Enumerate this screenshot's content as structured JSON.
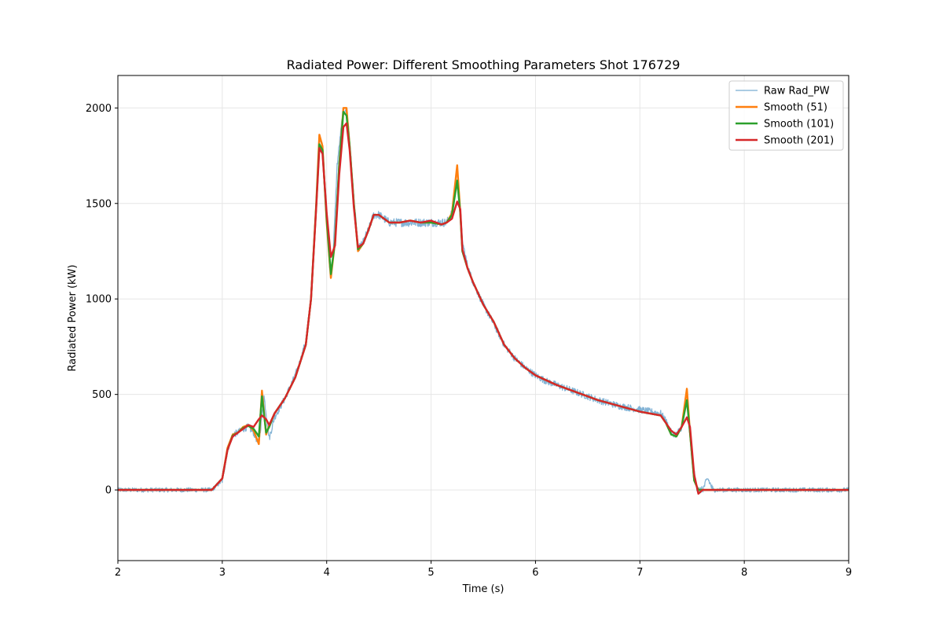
{
  "chart_data": {
    "type": "line",
    "title": "Radiated Power: Different Smoothing Parameters Shot 176729",
    "xlabel": "Time (s)",
    "ylabel": "Radiated Power (kW)",
    "xlim": [
      2,
      9
    ],
    "ylim": [
      -370,
      2170
    ],
    "xticks": [
      2,
      3,
      4,
      5,
      6,
      7,
      8,
      9
    ],
    "yticks": [
      0,
      500,
      1000,
      1500,
      2000
    ],
    "xtick_labels": [
      "2",
      "3",
      "4",
      "5",
      "6",
      "7",
      "8",
      "9"
    ],
    "ytick_labels": [
      "0",
      "500",
      "1000",
      "1500",
      "2000"
    ],
    "grid": true,
    "legend": "top-right",
    "series": [
      {
        "name": "Raw Rad_PW",
        "color": "#1f77b4",
        "style": "raw",
        "x": [
          2.0,
          2.1,
          2.2,
          2.3,
          2.4,
          2.5,
          2.6,
          2.7,
          2.8,
          2.9,
          3.0,
          3.05,
          3.1,
          3.15,
          3.2,
          3.25,
          3.3,
          3.35,
          3.4,
          3.45,
          3.5,
          3.55,
          3.6,
          3.65,
          3.7,
          3.75,
          3.8,
          3.85,
          3.9,
          3.93,
          3.96,
          4.0,
          4.03,
          4.06,
          4.1,
          4.15,
          4.18,
          4.21,
          4.25,
          4.3,
          4.35,
          4.4,
          4.45,
          4.5,
          4.6,
          4.7,
          4.8,
          4.9,
          5.0,
          5.1,
          5.15,
          5.2,
          5.25,
          5.3,
          5.35,
          5.4,
          5.5,
          5.6,
          5.7,
          5.8,
          5.9,
          6.0,
          6.1,
          6.2,
          6.3,
          6.4,
          6.5,
          6.6,
          6.7,
          6.8,
          6.9,
          7.0,
          7.1,
          7.2,
          7.25,
          7.3,
          7.35,
          7.4,
          7.45,
          7.5,
          7.55,
          7.6,
          7.65,
          7.7,
          7.8,
          7.9,
          8.0,
          8.2,
          8.4,
          8.6,
          8.8,
          9.0
        ],
        "y": [
          0,
          0,
          0,
          0,
          0,
          0,
          0,
          0,
          0,
          0,
          50,
          210,
          290,
          300,
          320,
          330,
          300,
          240,
          490,
          270,
          380,
          430,
          480,
          540,
          600,
          680,
          780,
          1000,
          1500,
          1850,
          1820,
          1400,
          1150,
          1200,
          1700,
          1950,
          2000,
          1900,
          1600,
          1260,
          1300,
          1360,
          1440,
          1440,
          1400,
          1400,
          1400,
          1400,
          1400,
          1400,
          1400,
          1450,
          1680,
          1300,
          1170,
          1090,
          970,
          870,
          760,
          690,
          640,
          600,
          570,
          550,
          530,
          510,
          490,
          470,
          455,
          440,
          430,
          420,
          410,
          400,
          360,
          300,
          290,
          330,
          530,
          150,
          0,
          0,
          60,
          0,
          0,
          0,
          0,
          0,
          0,
          0,
          0,
          0
        ]
      },
      {
        "name": "Smooth (51)",
        "color": "#ff7f0e",
        "style": "smooth",
        "x": [
          2.0,
          2.9,
          3.0,
          3.05,
          3.1,
          3.15,
          3.2,
          3.25,
          3.3,
          3.35,
          3.38,
          3.42,
          3.45,
          3.5,
          3.6,
          3.7,
          3.8,
          3.85,
          3.9,
          3.93,
          3.96,
          4.0,
          4.04,
          4.08,
          4.12,
          4.16,
          4.19,
          4.22,
          4.26,
          4.3,
          4.35,
          4.4,
          4.45,
          4.5,
          4.6,
          4.7,
          4.8,
          4.9,
          5.0,
          5.1,
          5.15,
          5.2,
          5.25,
          5.28,
          5.3,
          5.35,
          5.4,
          5.5,
          5.6,
          5.7,
          5.8,
          5.9,
          6.0,
          6.2,
          6.4,
          6.6,
          6.8,
          7.0,
          7.2,
          7.25,
          7.3,
          7.35,
          7.4,
          7.45,
          7.48,
          7.52,
          7.56,
          7.6,
          7.7,
          8.0,
          9.0
        ],
        "y": [
          0,
          0,
          60,
          220,
          290,
          300,
          330,
          340,
          310,
          240,
          520,
          290,
          340,
          400,
          480,
          590,
          760,
          1000,
          1500,
          1860,
          1800,
          1400,
          1110,
          1300,
          1700,
          2000,
          2000,
          1800,
          1500,
          1250,
          1290,
          1360,
          1440,
          1440,
          1400,
          1400,
          1410,
          1400,
          1400,
          1390,
          1400,
          1450,
          1700,
          1450,
          1250,
          1160,
          1090,
          970,
          880,
          760,
          690,
          640,
          600,
          550,
          510,
          470,
          440,
          410,
          390,
          350,
          290,
          280,
          330,
          530,
          300,
          50,
          0,
          0,
          0,
          0,
          0
        ]
      },
      {
        "name": "Smooth (101)",
        "color": "#2ca02c",
        "style": "smooth",
        "x": [
          2.0,
          2.9,
          3.0,
          3.05,
          3.1,
          3.15,
          3.2,
          3.25,
          3.3,
          3.35,
          3.38,
          3.42,
          3.45,
          3.5,
          3.6,
          3.7,
          3.8,
          3.85,
          3.9,
          3.93,
          3.96,
          4.0,
          4.04,
          4.08,
          4.12,
          4.16,
          4.19,
          4.22,
          4.26,
          4.3,
          4.35,
          4.4,
          4.45,
          4.5,
          4.6,
          4.7,
          4.8,
          4.9,
          5.0,
          5.1,
          5.15,
          5.2,
          5.25,
          5.28,
          5.3,
          5.35,
          5.4,
          5.5,
          5.6,
          5.7,
          5.8,
          5.9,
          6.0,
          6.2,
          6.4,
          6.6,
          6.8,
          7.0,
          7.2,
          7.25,
          7.3,
          7.35,
          7.4,
          7.45,
          7.48,
          7.52,
          7.56,
          7.6,
          7.7,
          8.0,
          9.0
        ],
        "y": [
          0,
          0,
          60,
          210,
          285,
          300,
          325,
          335,
          320,
          280,
          490,
          300,
          330,
          400,
          480,
          590,
          760,
          1000,
          1490,
          1810,
          1780,
          1420,
          1130,
          1300,
          1700,
          1980,
          1960,
          1800,
          1500,
          1260,
          1290,
          1360,
          1440,
          1440,
          1400,
          1400,
          1410,
          1400,
          1400,
          1390,
          1400,
          1440,
          1620,
          1450,
          1250,
          1160,
          1090,
          970,
          880,
          760,
          690,
          640,
          600,
          550,
          510,
          470,
          440,
          410,
          390,
          350,
          290,
          280,
          330,
          470,
          300,
          50,
          0,
          0,
          0,
          0,
          0
        ]
      },
      {
        "name": "Smooth (201)",
        "color": "#d62728",
        "style": "smooth",
        "x": [
          2.0,
          2.9,
          3.0,
          3.05,
          3.1,
          3.15,
          3.2,
          3.25,
          3.3,
          3.35,
          3.38,
          3.42,
          3.45,
          3.5,
          3.6,
          3.7,
          3.8,
          3.85,
          3.9,
          3.93,
          3.96,
          4.0,
          4.04,
          4.08,
          4.12,
          4.16,
          4.19,
          4.22,
          4.26,
          4.3,
          4.35,
          4.4,
          4.45,
          4.5,
          4.6,
          4.7,
          4.8,
          4.9,
          5.0,
          5.1,
          5.15,
          5.2,
          5.25,
          5.28,
          5.3,
          5.35,
          5.4,
          5.5,
          5.6,
          5.7,
          5.8,
          5.9,
          6.0,
          6.2,
          6.4,
          6.6,
          6.8,
          7.0,
          7.2,
          7.25,
          7.3,
          7.35,
          7.4,
          7.45,
          7.48,
          7.52,
          7.56,
          7.6,
          7.7,
          8.0,
          9.0
        ],
        "y": [
          0,
          0,
          60,
          210,
          280,
          300,
          320,
          340,
          330,
          370,
          390,
          370,
          340,
          400,
          480,
          590,
          760,
          1000,
          1480,
          1790,
          1760,
          1450,
          1220,
          1280,
          1650,
          1900,
          1920,
          1780,
          1480,
          1270,
          1290,
          1360,
          1440,
          1440,
          1400,
          1400,
          1410,
          1400,
          1410,
          1390,
          1400,
          1420,
          1510,
          1470,
          1260,
          1160,
          1090,
          970,
          880,
          760,
          690,
          640,
          600,
          550,
          510,
          470,
          440,
          410,
          390,
          350,
          310,
          290,
          330,
          380,
          330,
          80,
          -20,
          0,
          0,
          0,
          0
        ]
      }
    ]
  }
}
